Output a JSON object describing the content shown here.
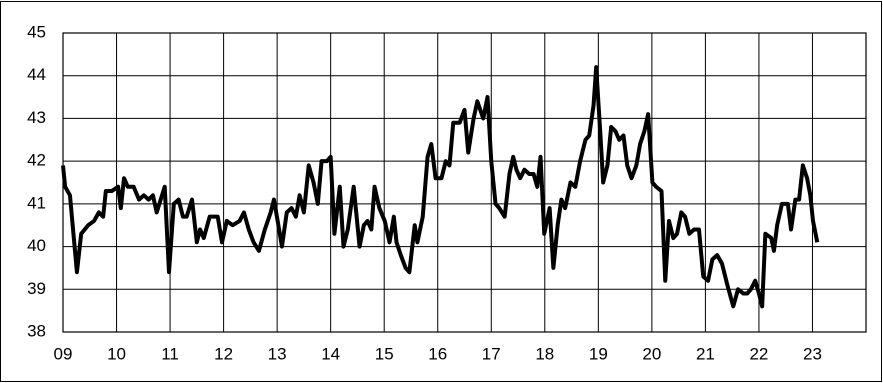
{
  "chart_data": {
    "type": "line",
    "x": [
      2009.0,
      2009.04,
      2009.13,
      2009.26,
      2009.34,
      2009.47,
      2009.58,
      2009.67,
      2009.75,
      2009.8,
      2009.91,
      2010.03,
      2010.08,
      2010.14,
      2010.21,
      2010.32,
      2010.42,
      2010.51,
      2010.6,
      2010.68,
      2010.75,
      2010.85,
      2010.9,
      2010.98,
      2011.07,
      2011.16,
      2011.24,
      2011.31,
      2011.41,
      2011.5,
      2011.56,
      2011.63,
      2011.74,
      2011.89,
      2011.97,
      2012.06,
      2012.17,
      2012.3,
      2012.38,
      2012.47,
      2012.56,
      2012.66,
      2012.77,
      2012.88,
      2012.94,
      2013.01,
      2013.09,
      2013.18,
      2013.27,
      2013.35,
      2013.42,
      2013.5,
      2013.59,
      2013.68,
      2013.76,
      2013.83,
      2013.93,
      2014.0,
      2014.07,
      2014.17,
      2014.24,
      2014.32,
      2014.43,
      2014.54,
      2014.62,
      2014.69,
      2014.76,
      2014.82,
      2014.91,
      2015.01,
      2015.1,
      2015.18,
      2015.23,
      2015.31,
      2015.4,
      2015.47,
      2015.57,
      2015.62,
      2015.72,
      2015.81,
      2015.88,
      2015.96,
      2016.07,
      2016.15,
      2016.22,
      2016.29,
      2016.41,
      2016.5,
      2016.57,
      2016.67,
      2016.74,
      2016.85,
      2016.93,
      2017.0,
      2017.08,
      2017.15,
      2017.25,
      2017.34,
      2017.41,
      2017.47,
      2017.54,
      2017.62,
      2017.71,
      2017.79,
      2017.86,
      2017.92,
      2017.99,
      2018.09,
      2018.16,
      2018.24,
      2018.31,
      2018.38,
      2018.48,
      2018.57,
      2018.66,
      2018.76,
      2018.83,
      2018.91,
      2018.96,
      2019.04,
      2019.09,
      2019.17,
      2019.24,
      2019.32,
      2019.39,
      2019.47,
      2019.54,
      2019.62,
      2019.71,
      2019.78,
      2019.86,
      2019.93,
      2020.01,
      2020.08,
      2020.18,
      2020.25,
      2020.32,
      2020.4,
      2020.47,
      2020.55,
      2020.62,
      2020.7,
      2020.79,
      2020.88,
      2020.96,
      2021.05,
      2021.13,
      2021.22,
      2021.31,
      2021.41,
      2021.52,
      2021.61,
      2021.71,
      2021.78,
      2021.85,
      2021.93,
      2022.0,
      2022.06,
      2022.12,
      2022.23,
      2022.28,
      2022.34,
      2022.43,
      2022.54,
      2022.6,
      2022.68,
      2022.75,
      2022.82,
      2022.9,
      2022.96,
      2023.01,
      2023.09
    ],
    "series": [
      {
        "color": "#000000",
        "values": [
          41.9,
          41.4,
          41.2,
          39.4,
          40.3,
          40.5,
          40.6,
          40.8,
          40.7,
          41.3,
          41.3,
          41.4,
          40.9,
          41.6,
          41.4,
          41.4,
          41.1,
          41.2,
          41.1,
          41.2,
          40.8,
          41.2,
          41.4,
          39.4,
          41.0,
          41.1,
          40.7,
          40.7,
          41.1,
          40.1,
          40.4,
          40.2,
          40.7,
          40.7,
          40.1,
          40.6,
          40.5,
          40.6,
          40.8,
          40.4,
          40.1,
          39.9,
          40.4,
          40.8,
          41.1,
          40.6,
          40.0,
          40.8,
          40.9,
          40.7,
          41.2,
          40.8,
          41.9,
          41.5,
          41.0,
          42.0,
          42.0,
          42.1,
          40.3,
          41.4,
          40.0,
          40.4,
          41.4,
          40.0,
          40.5,
          40.6,
          40.4,
          41.4,
          40.9,
          40.6,
          40.1,
          40.7,
          40.1,
          39.8,
          39.5,
          39.4,
          40.5,
          40.1,
          40.7,
          42.1,
          42.4,
          41.6,
          41.6,
          42.0,
          41.9,
          42.9,
          42.9,
          43.2,
          42.2,
          43.0,
          43.4,
          43.0,
          43.5,
          42.0,
          41.0,
          40.9,
          40.7,
          41.7,
          42.1,
          41.8,
          41.6,
          41.8,
          41.7,
          41.7,
          41.4,
          42.1,
          40.3,
          40.9,
          39.5,
          40.5,
          41.1,
          40.9,
          41.5,
          41.4,
          42.0,
          42.5,
          42.6,
          43.3,
          44.2,
          42.6,
          41.5,
          41.9,
          42.8,
          42.7,
          42.5,
          42.6,
          41.9,
          41.6,
          41.9,
          42.4,
          42.7,
          43.1,
          41.5,
          41.4,
          41.3,
          39.2,
          40.6,
          40.2,
          40.3,
          40.8,
          40.7,
          40.3,
          40.4,
          40.4,
          39.3,
          39.2,
          39.7,
          39.8,
          39.6,
          39.1,
          38.6,
          39.0,
          38.9,
          38.9,
          39.0,
          39.2,
          38.9,
          38.6,
          40.3,
          40.2,
          39.9,
          40.5,
          41.0,
          41.0,
          40.4,
          41.1,
          41.1,
          41.9,
          41.6,
          41.2,
          40.6,
          40.1
        ]
      }
    ],
    "xlim": [
      2009,
      2024
    ],
    "xticks": [
      {
        "value": 2009,
        "label": "09"
      },
      {
        "value": 2010,
        "label": "10"
      },
      {
        "value": 2011,
        "label": "11"
      },
      {
        "value": 2012,
        "label": "12"
      },
      {
        "value": 2013,
        "label": "13"
      },
      {
        "value": 2014,
        "label": "14"
      },
      {
        "value": 2015,
        "label": "15"
      },
      {
        "value": 2016,
        "label": "16"
      },
      {
        "value": 2017,
        "label": "17"
      },
      {
        "value": 2018,
        "label": "18"
      },
      {
        "value": 2019,
        "label": "19"
      },
      {
        "value": 2020,
        "label": "20"
      },
      {
        "value": 2021,
        "label": "21"
      },
      {
        "value": 2022,
        "label": "22"
      },
      {
        "value": 2023,
        "label": "23"
      }
    ],
    "ylim": [
      38,
      45
    ],
    "yticks": [
      38,
      39,
      40,
      41,
      42,
      43,
      44,
      45
    ],
    "grid": true
  }
}
